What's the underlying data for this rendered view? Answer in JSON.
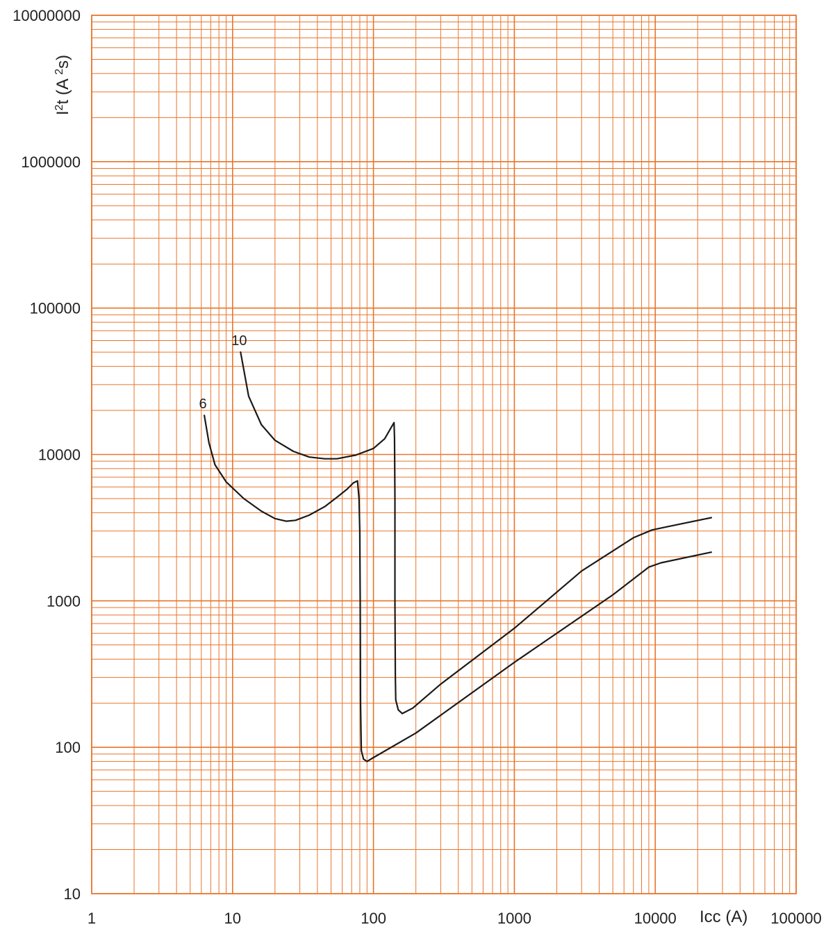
{
  "chart_data": {
    "type": "line",
    "title": "",
    "xlabel": "Icc (A)",
    "ylabel": "I²t (A²s)",
    "x_scale": "log",
    "y_scale": "log",
    "xlim": [
      1,
      100000
    ],
    "ylim": [
      10,
      10000000
    ],
    "grid": true,
    "colors": {
      "grid": "#e8742a",
      "line": "#1a1a1a",
      "text": "#222222"
    },
    "x_tick_labels": [
      "1",
      "10",
      "100",
      "1000",
      "10000",
      "100000"
    ],
    "y_tick_labels": [
      "10",
      "100",
      "1000",
      "10000",
      "100000",
      "1000000",
      "10000000"
    ],
    "series": [
      {
        "name": "10",
        "points": [
          [
            11.4,
            50000
          ],
          [
            13,
            25000
          ],
          [
            16,
            16000
          ],
          [
            20,
            12500
          ],
          [
            27,
            10500
          ],
          [
            35,
            9600
          ],
          [
            45,
            9350
          ],
          [
            55,
            9350
          ],
          [
            75,
            9900
          ],
          [
            100,
            11000
          ],
          [
            120,
            12800
          ],
          [
            130,
            14600
          ],
          [
            140,
            16500
          ],
          [
            141,
            13000
          ],
          [
            142,
            5000
          ],
          [
            142,
            1000
          ],
          [
            143,
            300
          ],
          [
            144,
            210
          ],
          [
            150,
            180
          ],
          [
            160,
            170
          ],
          [
            190,
            185
          ],
          [
            300,
            270
          ],
          [
            1000,
            650
          ],
          [
            3000,
            1600
          ],
          [
            7000,
            2700
          ],
          [
            9500,
            3050
          ],
          [
            12000,
            3200
          ],
          [
            25000,
            3700
          ]
        ]
      },
      {
        "name": "6",
        "points": [
          [
            6.3,
            18500
          ],
          [
            6.8,
            12000
          ],
          [
            7.5,
            8500
          ],
          [
            9,
            6500
          ],
          [
            12,
            5000
          ],
          [
            16,
            4100
          ],
          [
            20,
            3650
          ],
          [
            24,
            3500
          ],
          [
            28,
            3550
          ],
          [
            35,
            3850
          ],
          [
            45,
            4400
          ],
          [
            55,
            5100
          ],
          [
            65,
            5800
          ],
          [
            72,
            6400
          ],
          [
            77,
            6600
          ],
          [
            79,
            5000
          ],
          [
            80,
            3000
          ],
          [
            80.5,
            1000
          ],
          [
            81,
            200
          ],
          [
            82,
            95
          ],
          [
            85,
            83
          ],
          [
            90,
            80
          ],
          [
            100,
            85
          ],
          [
            200,
            125
          ],
          [
            1000,
            380
          ],
          [
            5000,
            1100
          ],
          [
            9000,
            1700
          ],
          [
            11000,
            1820
          ],
          [
            25000,
            2150
          ]
        ]
      }
    ]
  }
}
